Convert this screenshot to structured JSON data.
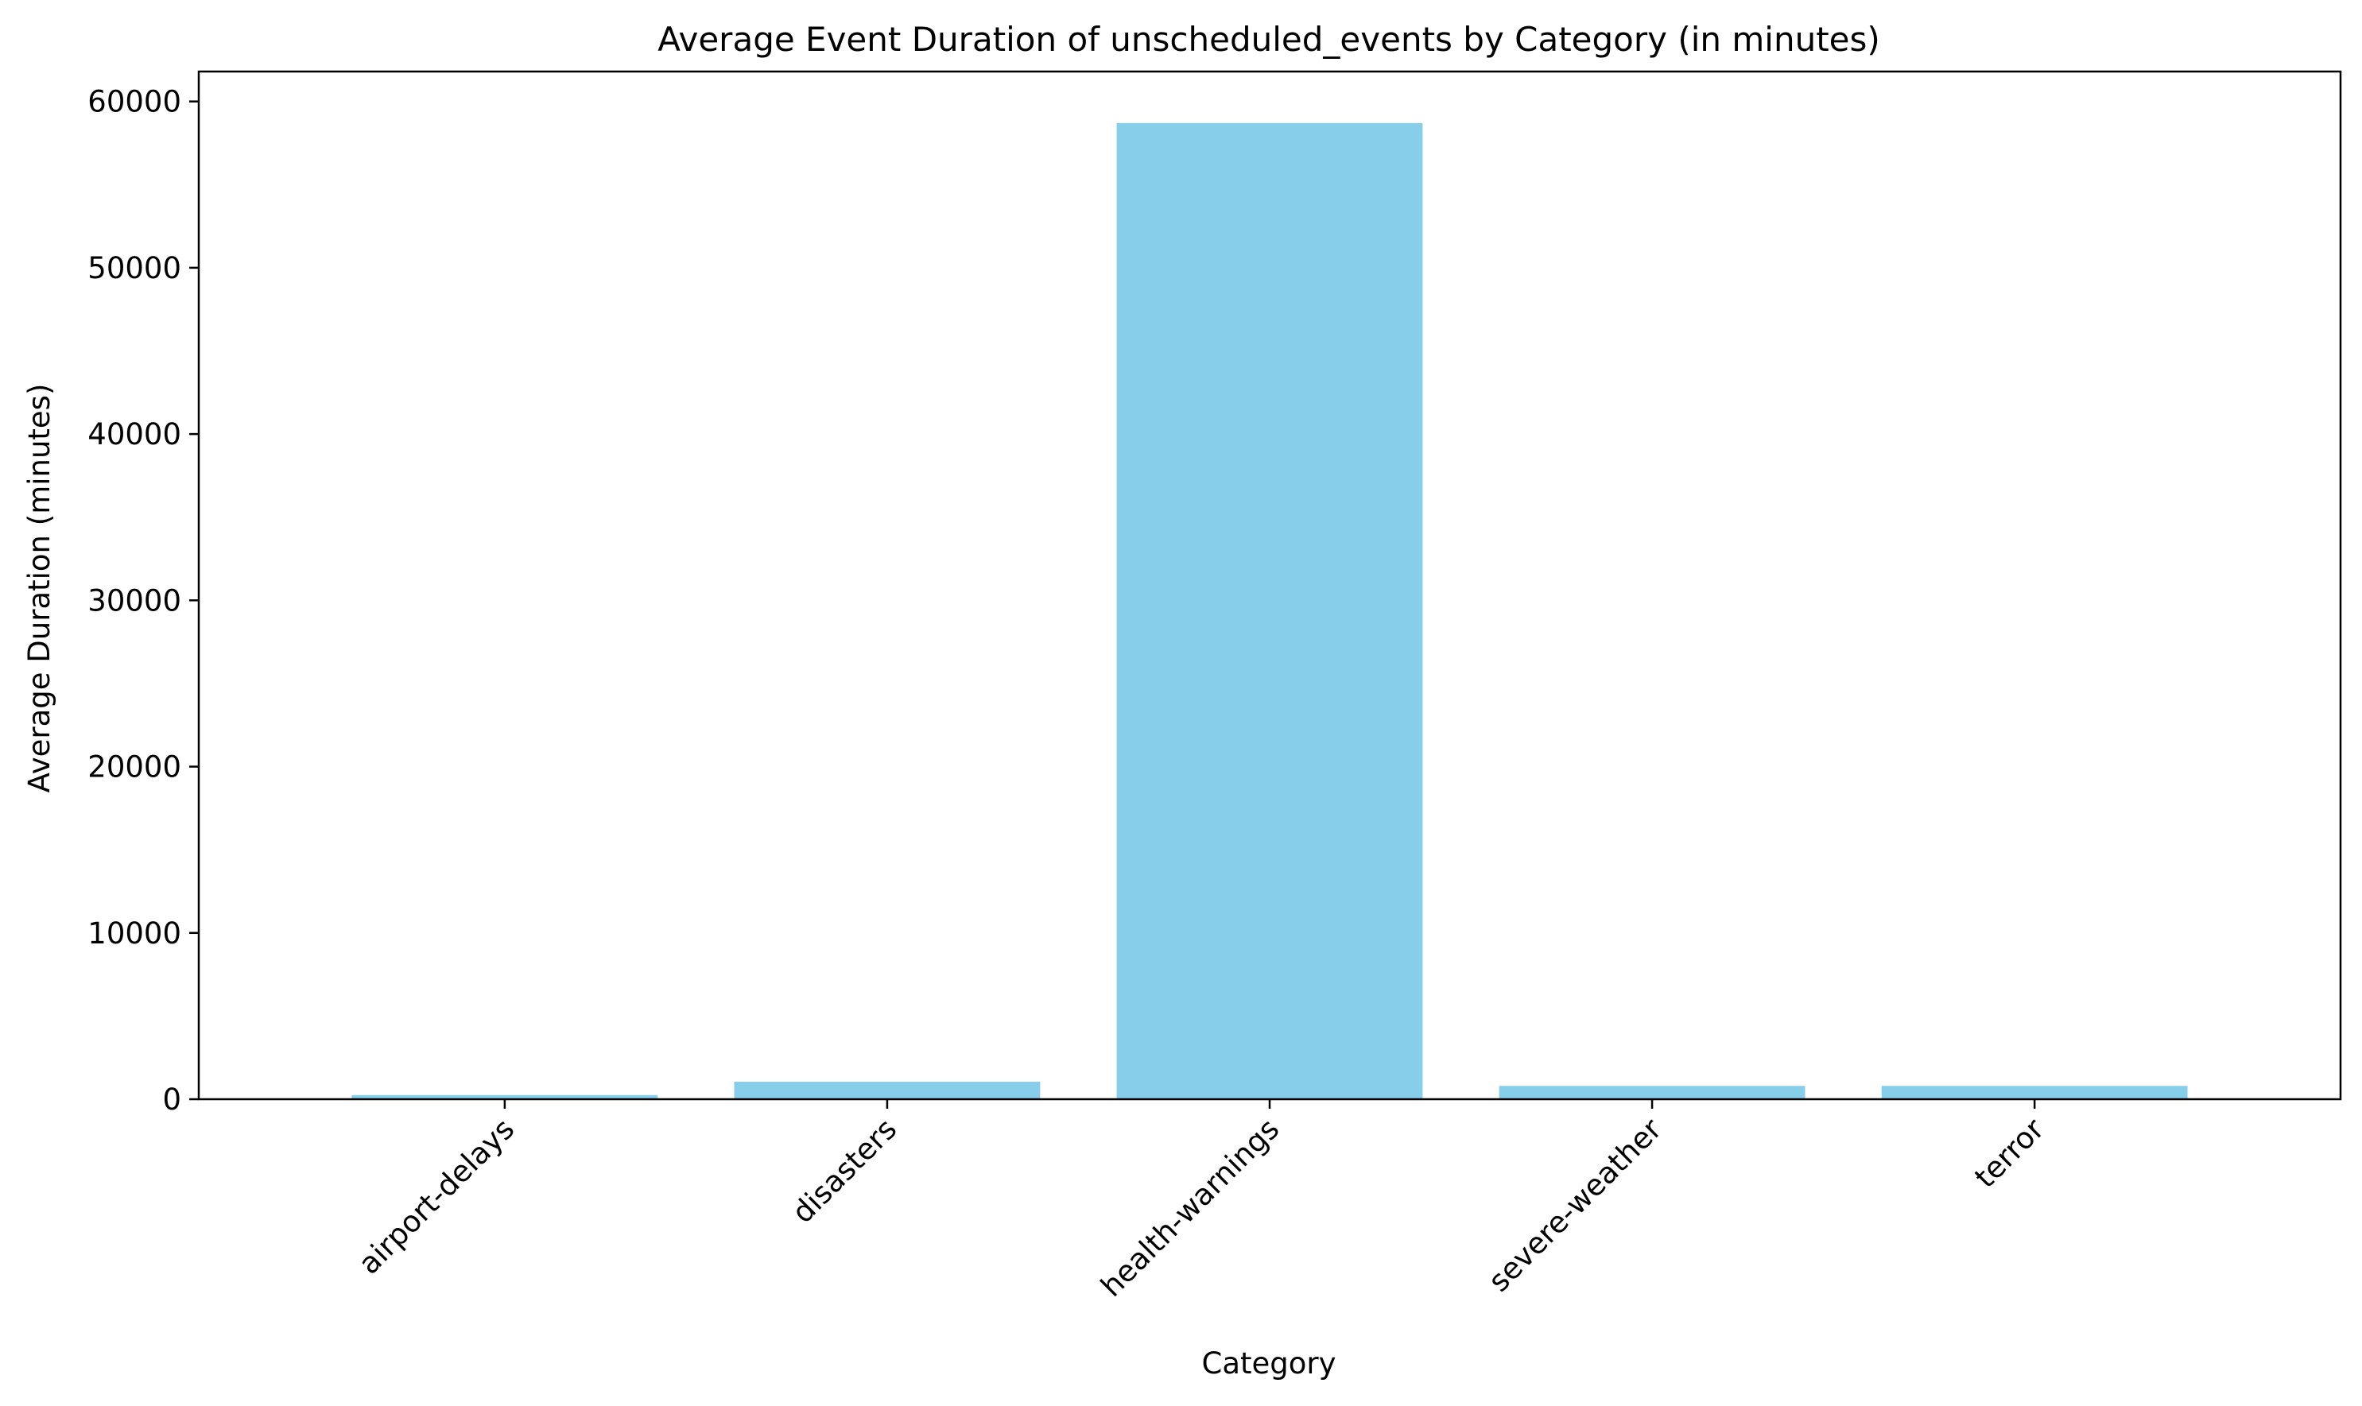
{
  "chart_data": {
    "type": "bar",
    "title": "Average Event Duration of unscheduled_events by Category (in minutes)",
    "xlabel": "Category",
    "ylabel": "Average Duration (minutes)",
    "categories": [
      "airport-delays",
      "disasters",
      "health-warnings",
      "severe-weather",
      "terror"
    ],
    "values": [
      250,
      1050,
      58700,
      800,
      800
    ],
    "ylim": [
      0,
      61800
    ],
    "yticks": [
      0,
      10000,
      20000,
      30000,
      40000,
      50000,
      60000
    ],
    "ytick_labels": [
      "0",
      "10000",
      "20000",
      "30000",
      "40000",
      "50000",
      "60000"
    ],
    "grid": false,
    "legend": "none",
    "colors": {
      "bar": "#87ceeb",
      "axis": "#000000",
      "background": "#ffffff"
    }
  }
}
